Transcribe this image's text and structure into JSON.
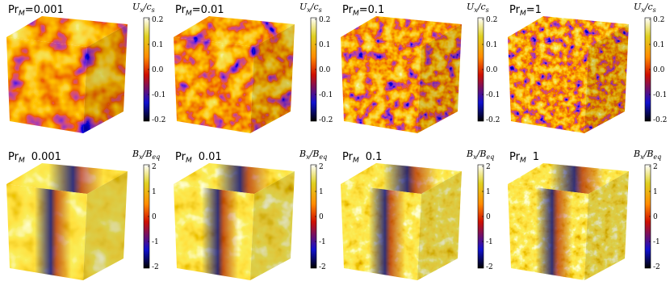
{
  "panels": [
    {
      "label": {
        "text": "Pr",
        "sub": "M",
        "value": "=0.001"
      },
      "colorbar": {
        "var": "U",
        "var_sub": "x",
        "ref": "/c",
        "ref_sub": "s",
        "ticks": [
          "0.2",
          "0.1",
          "0.0",
          "-0.1",
          "-0.2"
        ]
      }
    },
    {
      "label": {
        "text": "Pr",
        "sub": "M",
        "value": "=0.01"
      },
      "colorbar": {
        "var": "U",
        "var_sub": "x",
        "ref": "/c",
        "ref_sub": "s",
        "ticks": [
          "0.2",
          "0.1",
          "0.0",
          "-0.1",
          "-0.2"
        ]
      }
    },
    {
      "label": {
        "text": "Pr",
        "sub": "M",
        "value": "=0.1"
      },
      "colorbar": {
        "var": "U",
        "var_sub": "x",
        "ref": "/c",
        "ref_sub": "s",
        "ticks": [
          "0.2",
          "0.1",
          "0.0",
          "-0.1",
          "-0.2"
        ]
      }
    },
    {
      "label": {
        "text": "Pr",
        "sub": "M",
        "value": "=1"
      },
      "colorbar": {
        "var": "U",
        "var_sub": "x",
        "ref": "/c",
        "ref_sub": "s",
        "ticks": [
          "0.2",
          "0.1",
          "0.0",
          "-0.1",
          "-0.2"
        ]
      }
    },
    {
      "label": {
        "text": "Pr",
        "sub": "M",
        "value": "0.001"
      },
      "colorbar": {
        "var": "B",
        "var_sub": "x",
        "ref": "/B",
        "ref_sub": "eq",
        "ticks": [
          "2",
          "1",
          "0",
          "-1",
          "-2"
        ]
      }
    },
    {
      "label": {
        "text": "Pr",
        "sub": "M",
        "value": "0.01"
      },
      "colorbar": {
        "var": "B",
        "var_sub": "x",
        "ref": "/B",
        "ref_sub": "eq",
        "ticks": [
          "2",
          "1",
          "0",
          "-1",
          "-2"
        ]
      }
    },
    {
      "label": {
        "text": "Pr",
        "sub": "M",
        "value": "0.1"
      },
      "colorbar": {
        "var": "B",
        "var_sub": "x",
        "ref": "/B",
        "ref_sub": "eq",
        "ticks": [
          "2",
          "1",
          "0",
          "-1",
          "-2"
        ]
      }
    },
    {
      "label": {
        "text": "Pr",
        "sub": "M",
        "value": "1"
      },
      "colorbar": {
        "var": "B",
        "var_sub": "x",
        "ref": "/B",
        "ref_sub": "eq",
        "ticks": [
          "2",
          "1",
          "0",
          "-1",
          "-2"
        ]
      }
    }
  ]
}
